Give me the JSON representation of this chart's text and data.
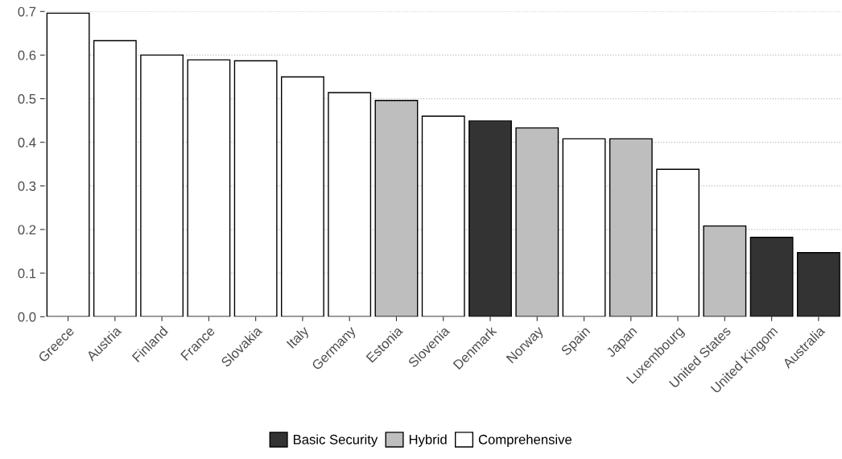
{
  "chart_data": {
    "type": "bar",
    "stacked": true,
    "categories": [
      "Greece",
      "Austria",
      "Finland",
      "France",
      "Slovakia",
      "Italy",
      "Germany",
      "Estonia",
      "Slovenia",
      "Denmark",
      "Norway",
      "Spain",
      "Japan",
      "Luxembourg",
      "United States",
      "United Kingom",
      "Australia"
    ],
    "series": [
      {
        "name": "Basic Security",
        "color": "#333333",
        "values": [
          null,
          null,
          null,
          null,
          null,
          null,
          null,
          null,
          null,
          0.449,
          null,
          null,
          null,
          null,
          null,
          0.182,
          0.147
        ]
      },
      {
        "name": "Hybrid",
        "color": "#bebebe",
        "values": [
          null,
          null,
          null,
          null,
          null,
          null,
          null,
          0.496,
          null,
          null,
          0.433,
          null,
          0.408,
          null,
          0.208,
          null,
          null
        ]
      },
      {
        "name": "Comprehensive",
        "color": "#ffffff",
        "values": [
          0.696,
          0.633,
          0.6,
          0.589,
          0.587,
          0.55,
          0.514,
          null,
          0.46,
          null,
          null,
          0.408,
          null,
          0.338,
          null,
          null,
          null
        ]
      }
    ],
    "ylim": [
      0,
      0.7
    ],
    "yticks": [
      {
        "value": 0,
        "label": "0.0"
      },
      {
        "value": 0.1,
        "label": "0.1"
      },
      {
        "value": 0.2,
        "label": "0.2"
      },
      {
        "value": 0.3,
        "label": "0.3"
      },
      {
        "value": 0.4,
        "label": "0.4"
      },
      {
        "value": 0.5,
        "label": "0.5"
      },
      {
        "value": 0.6,
        "label": "0.6"
      },
      {
        "value": 0.7,
        "label": "0.7"
      }
    ],
    "grid": "y",
    "legend": "bottom"
  }
}
